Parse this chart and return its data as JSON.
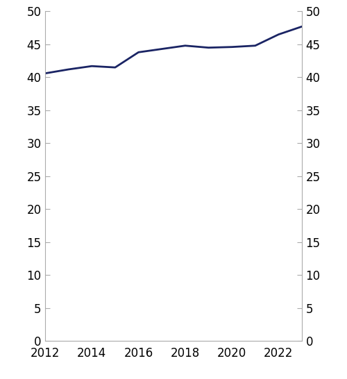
{
  "years": [
    2012,
    2013,
    2014,
    2015,
    2016,
    2017,
    2018,
    2019,
    2020,
    2021,
    2022,
    2023
  ],
  "values": [
    40.6,
    41.2,
    41.7,
    41.5,
    43.8,
    44.3,
    44.8,
    44.5,
    44.6,
    44.8,
    46.5,
    47.7
  ],
  "line_color": "#1a2464",
  "line_width": 2.0,
  "ylim": [
    0,
    50
  ],
  "yticks": [
    0,
    5,
    10,
    15,
    20,
    25,
    30,
    35,
    40,
    45,
    50
  ],
  "xticks": [
    2012,
    2014,
    2016,
    2018,
    2020,
    2022
  ],
  "background_color": "#ffffff",
  "spine_color": "#aaaaaa",
  "tick_label_size": 12
}
